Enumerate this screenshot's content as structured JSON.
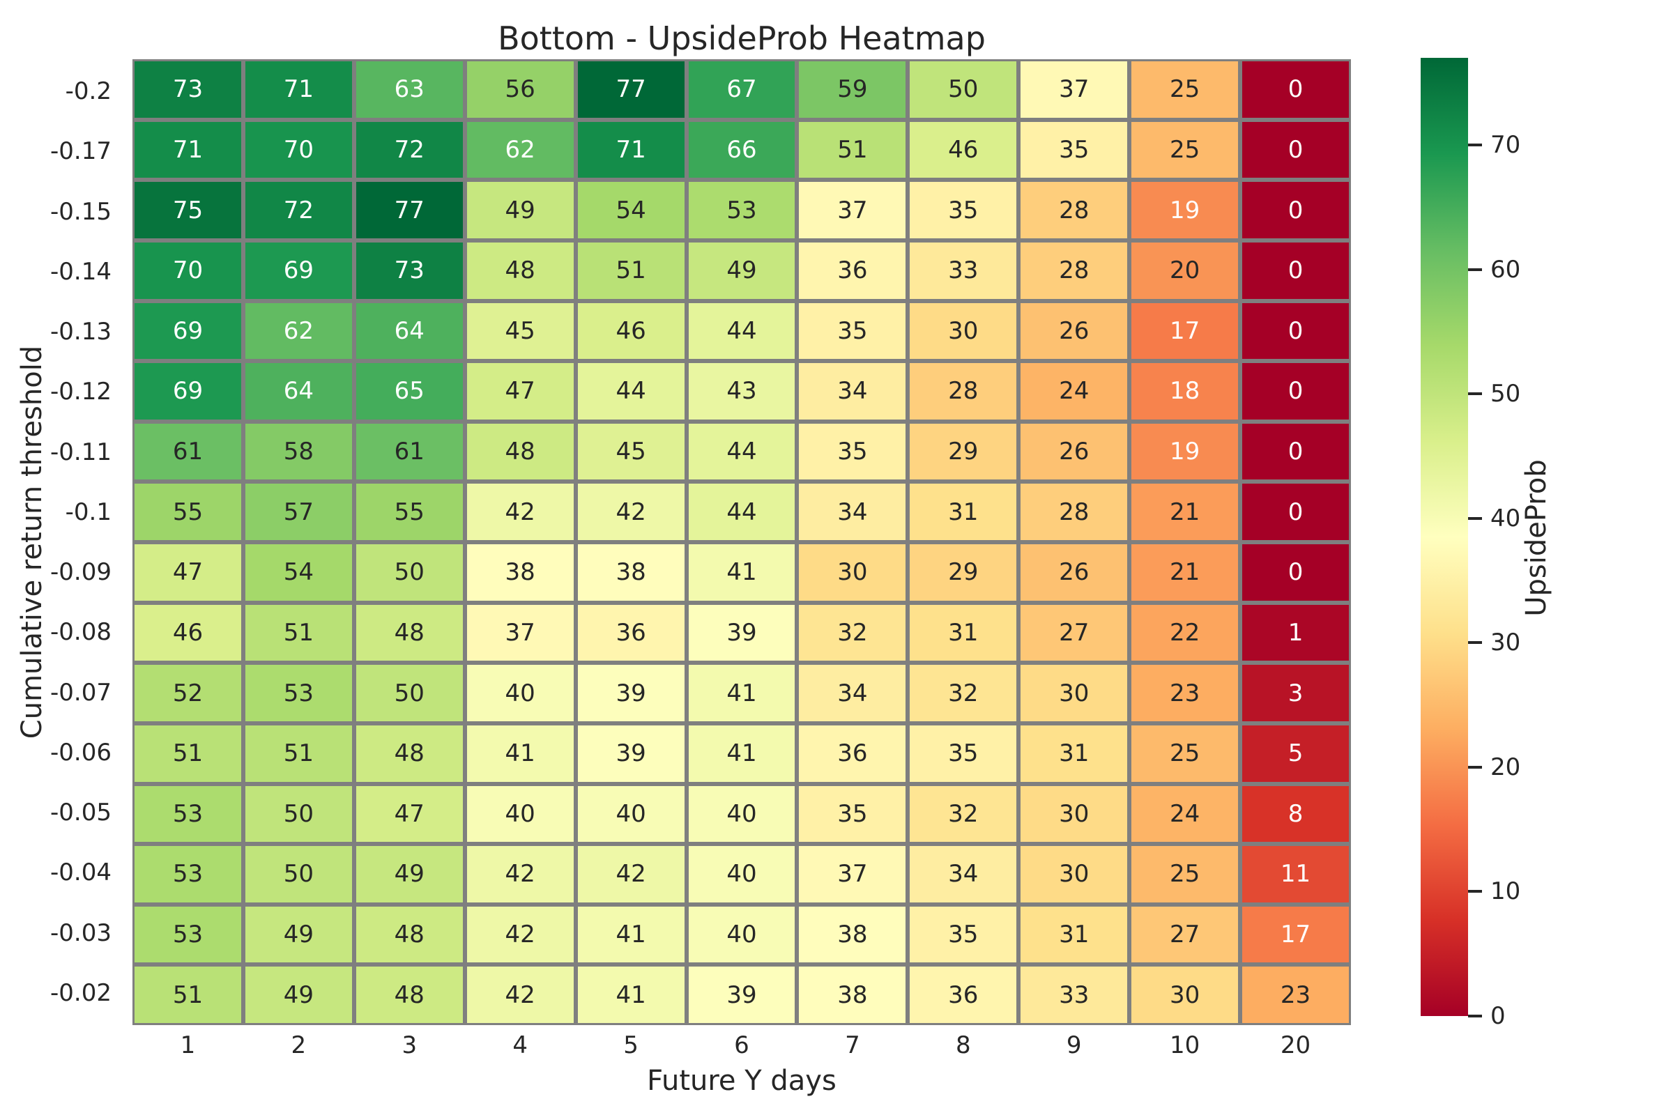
{
  "chart_data": {
    "type": "heatmap",
    "title": "Bottom - UpsideProb Heatmap",
    "xlabel": "Future Y days",
    "ylabel": "Cumulative return threshold",
    "colorbar_label": "UpsideProb",
    "x_categories": [
      "1",
      "2",
      "3",
      "4",
      "5",
      "6",
      "7",
      "8",
      "9",
      "10",
      "20"
    ],
    "y_categories": [
      "-0.2",
      "-0.17",
      "-0.15",
      "-0.14",
      "-0.13",
      "-0.12",
      "-0.11",
      "-0.1",
      "-0.09",
      "-0.08",
      "-0.07",
      "-0.06",
      "-0.05",
      "-0.04",
      "-0.03",
      "-0.02"
    ],
    "values": [
      [
        73,
        71,
        63,
        56,
        77,
        67,
        59,
        50,
        37,
        25,
        0
      ],
      [
        71,
        70,
        72,
        62,
        71,
        66,
        51,
        46,
        35,
        25,
        0
      ],
      [
        75,
        72,
        77,
        49,
        54,
        53,
        37,
        35,
        28,
        19,
        0
      ],
      [
        70,
        69,
        73,
        48,
        51,
        49,
        36,
        33,
        28,
        20,
        0
      ],
      [
        69,
        62,
        64,
        45,
        46,
        44,
        35,
        30,
        26,
        17,
        0
      ],
      [
        69,
        64,
        65,
        47,
        44,
        43,
        34,
        28,
        24,
        18,
        0
      ],
      [
        61,
        58,
        61,
        48,
        45,
        44,
        35,
        29,
        26,
        19,
        0
      ],
      [
        55,
        57,
        55,
        42,
        42,
        44,
        34,
        31,
        28,
        21,
        0
      ],
      [
        47,
        54,
        50,
        38,
        38,
        41,
        30,
        29,
        26,
        21,
        0
      ],
      [
        46,
        51,
        48,
        37,
        36,
        39,
        32,
        31,
        27,
        22,
        1
      ],
      [
        52,
        53,
        50,
        40,
        39,
        41,
        34,
        32,
        30,
        23,
        3
      ],
      [
        51,
        51,
        48,
        41,
        39,
        41,
        36,
        35,
        31,
        25,
        5
      ],
      [
        53,
        50,
        47,
        40,
        40,
        40,
        35,
        32,
        30,
        24,
        8
      ],
      [
        53,
        50,
        49,
        42,
        42,
        40,
        37,
        34,
        30,
        25,
        11
      ],
      [
        53,
        49,
        48,
        42,
        41,
        40,
        38,
        35,
        31,
        27,
        17
      ],
      [
        51,
        49,
        48,
        42,
        41,
        39,
        38,
        36,
        33,
        30,
        23
      ]
    ],
    "vmin": 0,
    "vmax": 77,
    "colorbar_ticks": [
      0,
      10,
      20,
      30,
      40,
      50,
      60,
      70
    ],
    "colormap": "RdYlGn",
    "colormap_stops": [
      "#a50026",
      "#d73027",
      "#f46d43",
      "#fdae61",
      "#fee08b",
      "#ffffbf",
      "#d9ef8b",
      "#a6d96a",
      "#66bd63",
      "#1a9850",
      "#006837"
    ],
    "grid_on": false,
    "legend_position": "right-colorbar",
    "colors": {
      "line": "#7f7f7f",
      "text": "#262626",
      "annot_dark": "#262626",
      "annot_light": "#ffffff",
      "background": "#ffffff"
    }
  }
}
